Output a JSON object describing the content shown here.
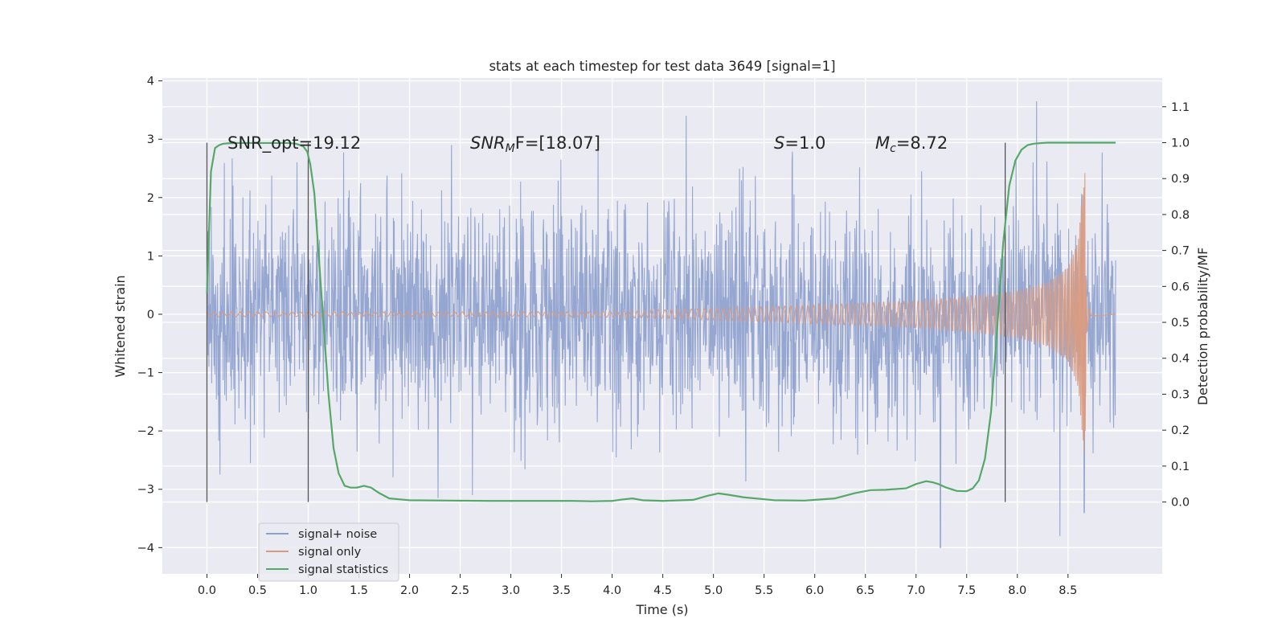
{
  "chart_data": {
    "type": "line",
    "title": "stats at each timestep for test data 3649 [signal=1]",
    "xlabel": "Time (s)",
    "ylabel_left": "Whitened strain",
    "ylabel_right": "Detection probability/MF",
    "xlim": [
      -0.44,
      9.43
    ],
    "ylim_left": [
      -4.45,
      4.05
    ],
    "ylim_right": [
      -0.2,
      1.18
    ],
    "x_ticks": [
      "0.0",
      "0.5",
      "1.0",
      "1.5",
      "2.0",
      "2.5",
      "3.0",
      "3.5",
      "4.0",
      "4.5",
      "5.0",
      "5.5",
      "6.0",
      "6.5",
      "7.0",
      "7.5",
      "8.0",
      "8.5"
    ],
    "x_tick_values": [
      0,
      0.5,
      1,
      1.5,
      2,
      2.5,
      3,
      3.5,
      4,
      4.5,
      5,
      5.5,
      6,
      6.5,
      7,
      7.5,
      8,
      8.5
    ],
    "y_left_ticks": [
      "4",
      "3",
      "2",
      "1",
      "0",
      "−1",
      "−2",
      "−3",
      "−4"
    ],
    "y_left_tick_values": [
      4,
      3,
      2,
      1,
      0,
      -1,
      -2,
      -3,
      -4
    ],
    "y_right_ticks": [
      "1.1",
      "1.0",
      "0.9",
      "0.8",
      "0.7",
      "0.6",
      "0.5",
      "0.4",
      "0.3",
      "0.2",
      "0.1",
      "0.0"
    ],
    "y_right_tick_values": [
      1.1,
      1.0,
      0.9,
      0.8,
      0.7,
      0.6,
      0.5,
      0.4,
      0.3,
      0.2,
      0.1,
      0.0
    ],
    "annotations": {
      "snr_opt": "SNR_opt=19.12",
      "snr_mf_main": "SNR",
      "snr_mf_sub": "M",
      "snr_mf_tail": "F=[18.07]",
      "s_label": "S",
      "s_value": "=1.0",
      "mc_label": "M",
      "mc_sub": "c",
      "mc_value": "=8.72"
    },
    "vlines": [
      0.0,
      1.0,
      7.88
    ],
    "vline_range_right": [
      0.0,
      1.0
    ],
    "noise": {
      "name": "signal+ noise",
      "t_start": 0.0,
      "t_end": 8.97,
      "typical_amplitude": 1.6,
      "peaks": [
        {
          "t": 4.73,
          "v": 3.4
        },
        {
          "t": 8.19,
          "v": 3.65
        },
        {
          "t": 7.24,
          "v": -4.0
        },
        {
          "t": 8.42,
          "v": -3.8
        },
        {
          "t": 8.66,
          "v": -3.4
        },
        {
          "t": 2.28,
          "v": -3.15
        },
        {
          "t": 2.62,
          "v": -3.1
        }
      ]
    },
    "signal_only": {
      "name": "signal only",
      "t_start": 0.0,
      "t_merger": 8.67,
      "t_end": 8.97,
      "envelope_t": [
        0,
        1,
        2,
        3,
        4,
        5,
        6,
        7,
        7.5,
        8.0,
        8.3,
        8.5,
        8.6,
        8.67
      ],
      "envelope_v": [
        0.04,
        0.04,
        0.04,
        0.04,
        0.05,
        0.1,
        0.16,
        0.23,
        0.3,
        0.4,
        0.55,
        0.8,
        1.25,
        2.6
      ],
      "min_v": -2.0
    },
    "statistics": {
      "name": "signal statistics",
      "x": [
        0.0,
        0.04,
        0.08,
        0.12,
        0.16,
        0.2,
        0.3,
        0.5,
        0.7,
        0.8,
        0.88,
        0.95,
        0.99,
        1.02,
        1.06,
        1.1,
        1.15,
        1.2,
        1.25,
        1.3,
        1.36,
        1.42,
        1.48,
        1.55,
        1.62,
        1.7,
        1.8,
        2.0,
        2.4,
        2.8,
        3.2,
        3.6,
        3.8,
        4.0,
        4.1,
        4.2,
        4.3,
        4.5,
        4.8,
        4.95,
        5.05,
        5.15,
        5.3,
        5.6,
        5.9,
        6.2,
        6.4,
        6.55,
        6.7,
        6.9,
        7.0,
        7.1,
        7.16,
        7.22,
        7.3,
        7.4,
        7.5,
        7.56,
        7.62,
        7.68,
        7.74,
        7.8,
        7.86,
        7.92,
        7.98,
        8.04,
        8.1,
        8.16,
        8.24,
        8.3,
        8.5,
        8.97
      ],
      "y": [
        0.58,
        0.92,
        0.985,
        0.993,
        0.997,
        0.998,
        0.999,
        0.999,
        0.999,
        0.999,
        0.997,
        0.99,
        0.975,
        0.94,
        0.86,
        0.7,
        0.5,
        0.3,
        0.15,
        0.08,
        0.045,
        0.04,
        0.04,
        0.045,
        0.04,
        0.025,
        0.01,
        0.005,
        0.004,
        0.003,
        0.003,
        0.003,
        0.002,
        0.003,
        0.007,
        0.01,
        0.005,
        0.003,
        0.006,
        0.018,
        0.024,
        0.02,
        0.013,
        0.005,
        0.004,
        0.01,
        0.025,
        0.033,
        0.034,
        0.038,
        0.05,
        0.058,
        0.055,
        0.05,
        0.04,
        0.031,
        0.03,
        0.038,
        0.06,
        0.12,
        0.25,
        0.48,
        0.72,
        0.88,
        0.95,
        0.98,
        0.993,
        0.997,
        0.999,
        1.0,
        1.0,
        1.0
      ]
    },
    "legend": [
      "signal+ noise",
      "signal only",
      "signal statistics"
    ],
    "legend_position": "lower-left",
    "grid": true,
    "colors": {
      "noise": "#8c9fcd",
      "signal": "#d99b80",
      "stats": "#55a868",
      "vline": "#555555",
      "axes_bg": "#eaeaf2",
      "grid": "#ffffff"
    }
  }
}
